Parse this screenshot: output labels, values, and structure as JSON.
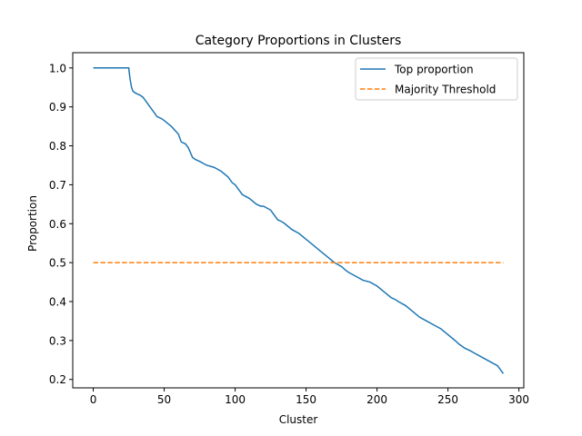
{
  "chart_data": {
    "type": "line",
    "title": "Category Proportions in Clusters",
    "xlabel": "Cluster",
    "ylabel": "Proportion",
    "xlim": [
      -14.45,
      303.45
    ],
    "ylim": [
      0.1784,
      1.0392
    ],
    "xticks": [
      0,
      50,
      100,
      150,
      200,
      250,
      300
    ],
    "yticks": [
      0.2,
      0.3,
      0.4,
      0.5,
      0.6,
      0.7,
      0.8,
      0.9,
      1.0
    ],
    "xtick_labels": [
      "0",
      "50",
      "100",
      "150",
      "200",
      "250",
      "300"
    ],
    "ytick_labels": [
      "0.2",
      "0.3",
      "0.4",
      "0.5",
      "0.6",
      "0.7",
      "0.8",
      "0.9",
      "1.0"
    ],
    "grid": false,
    "legend_position": "upper right",
    "series": [
      {
        "name": "Top proportion",
        "color": "#1f77b4",
        "style": "solid",
        "x": [
          0,
          25,
          26,
          27,
          28,
          30,
          33,
          35,
          37,
          40,
          43,
          45,
          48,
          50,
          55,
          60,
          62,
          65,
          67,
          70,
          72,
          75,
          80,
          85,
          90,
          95,
          98,
          100,
          103,
          105,
          110,
          115,
          118,
          120,
          125,
          130,
          133,
          135,
          140,
          145,
          150,
          155,
          160,
          165,
          170,
          175,
          178,
          180,
          185,
          190,
          195,
          200,
          205,
          210,
          213,
          215,
          220,
          225,
          230,
          235,
          240,
          245,
          250,
          255,
          258,
          260,
          262,
          265,
          270,
          275,
          280,
          285,
          287,
          289
        ],
        "y": [
          1.0,
          1.0,
          0.97,
          0.95,
          0.94,
          0.935,
          0.93,
          0.925,
          0.915,
          0.9,
          0.885,
          0.875,
          0.87,
          0.865,
          0.85,
          0.83,
          0.81,
          0.805,
          0.795,
          0.77,
          0.765,
          0.76,
          0.75,
          0.745,
          0.735,
          0.72,
          0.705,
          0.7,
          0.685,
          0.675,
          0.665,
          0.65,
          0.645,
          0.645,
          0.635,
          0.61,
          0.605,
          0.6,
          0.585,
          0.575,
          0.56,
          0.545,
          0.53,
          0.515,
          0.5,
          0.49,
          0.48,
          0.475,
          0.465,
          0.455,
          0.45,
          0.44,
          0.425,
          0.41,
          0.405,
          0.4,
          0.39,
          0.375,
          0.36,
          0.35,
          0.34,
          0.33,
          0.315,
          0.3,
          0.29,
          0.285,
          0.28,
          0.275,
          0.265,
          0.255,
          0.245,
          0.235,
          0.225,
          0.215
        ]
      },
      {
        "name": "Majority Threshold",
        "color": "#ff7f0e",
        "style": "dashed",
        "x": [
          0,
          289
        ],
        "y": [
          0.5,
          0.5
        ]
      }
    ]
  }
}
